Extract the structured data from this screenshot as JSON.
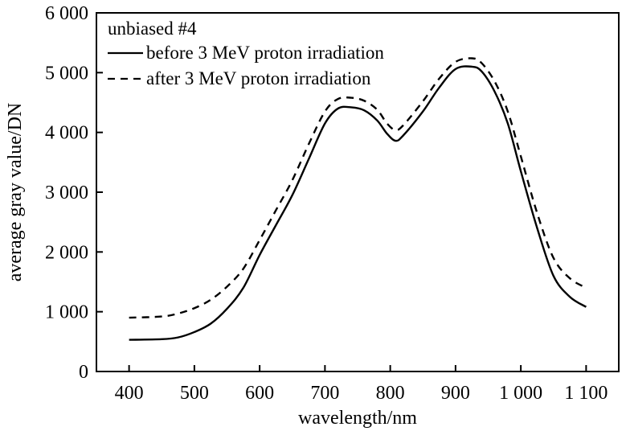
{
  "chart_data": {
    "type": "line",
    "xlabel": "wavelength/nm",
    "ylabel": "average gray value/DN",
    "xlim": [
      350,
      1150
    ],
    "ylim": [
      0,
      6000
    ],
    "x_ticks": [
      400,
      500,
      600,
      700,
      800,
      900,
      1000,
      1100
    ],
    "x_tick_labels": [
      "400",
      "500",
      "600",
      "700",
      "800",
      "900",
      "1 000",
      "1 100"
    ],
    "y_ticks": [
      0,
      1000,
      2000,
      3000,
      4000,
      5000,
      6000
    ],
    "y_tick_labels": [
      "0",
      "1 000",
      "2 000",
      "3 000",
      "4 000",
      "5 000",
      "6 000"
    ],
    "grid": false,
    "legend_position": "top-left",
    "legend_title": "unbiased #4",
    "series": [
      {
        "name": "before 3 MeV proton irradiation",
        "line_style": "solid",
        "color": "#000000",
        "points": [
          [
            400,
            530
          ],
          [
            450,
            540
          ],
          [
            475,
            570
          ],
          [
            500,
            660
          ],
          [
            525,
            800
          ],
          [
            550,
            1050
          ],
          [
            575,
            1400
          ],
          [
            600,
            1950
          ],
          [
            625,
            2450
          ],
          [
            650,
            2950
          ],
          [
            675,
            3550
          ],
          [
            700,
            4150
          ],
          [
            720,
            4400
          ],
          [
            740,
            4420
          ],
          [
            760,
            4370
          ],
          [
            780,
            4200
          ],
          [
            795,
            3980
          ],
          [
            808,
            3860
          ],
          [
            820,
            3950
          ],
          [
            850,
            4350
          ],
          [
            875,
            4750
          ],
          [
            900,
            5060
          ],
          [
            925,
            5100
          ],
          [
            940,
            5020
          ],
          [
            960,
            4680
          ],
          [
            980,
            4150
          ],
          [
            1000,
            3350
          ],
          [
            1025,
            2400
          ],
          [
            1050,
            1600
          ],
          [
            1075,
            1250
          ],
          [
            1100,
            1080
          ]
        ]
      },
      {
        "name": "after 3 MeV proton irradiation",
        "line_style": "dashed",
        "color": "#000000",
        "points": [
          [
            400,
            900
          ],
          [
            450,
            920
          ],
          [
            475,
            970
          ],
          [
            500,
            1060
          ],
          [
            525,
            1200
          ],
          [
            550,
            1420
          ],
          [
            575,
            1720
          ],
          [
            600,
            2200
          ],
          [
            625,
            2700
          ],
          [
            650,
            3200
          ],
          [
            675,
            3800
          ],
          [
            700,
            4350
          ],
          [
            720,
            4560
          ],
          [
            740,
            4580
          ],
          [
            760,
            4530
          ],
          [
            780,
            4380
          ],
          [
            795,
            4150
          ],
          [
            808,
            4040
          ],
          [
            820,
            4120
          ],
          [
            850,
            4520
          ],
          [
            875,
            4900
          ],
          [
            900,
            5180
          ],
          [
            925,
            5240
          ],
          [
            940,
            5160
          ],
          [
            960,
            4850
          ],
          [
            980,
            4350
          ],
          [
            1000,
            3600
          ],
          [
            1025,
            2650
          ],
          [
            1050,
            1900
          ],
          [
            1075,
            1560
          ],
          [
            1100,
            1400
          ]
        ]
      }
    ]
  }
}
